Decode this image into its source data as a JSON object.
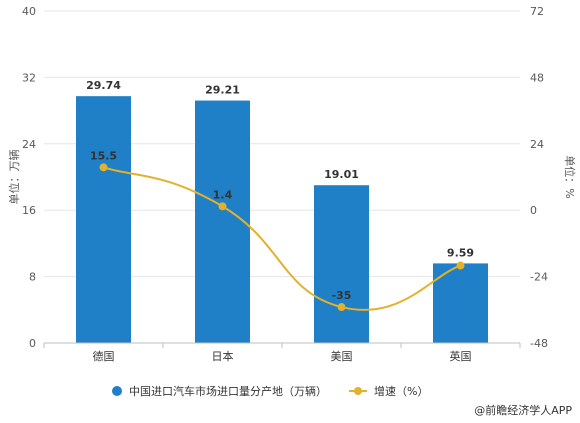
{
  "chart_data": {
    "type": "bar",
    "categories": [
      "德国",
      "日本",
      "美国",
      "英国"
    ],
    "series": [
      {
        "name": "中国进口汽车市场进口量分产地（万辆）",
        "type": "bar",
        "axis": "left",
        "values": [
          29.74,
          29.21,
          19.01,
          9.59
        ],
        "color": "#1f7fc7"
      },
      {
        "name": "增速（%）",
        "type": "line",
        "axis": "right",
        "values": [
          15.5,
          1.4,
          -35,
          -20
        ],
        "labels": [
          "15.5",
          "1.4",
          "-35",
          ""
        ],
        "color": "#e3b12a"
      }
    ],
    "ylabel": "单位：万辆",
    "y2label": "单位：%",
    "ylim": [
      0,
      40
    ],
    "y2lim": [
      -48,
      72
    ],
    "yticks": [
      0,
      8,
      16,
      24,
      32,
      40
    ],
    "y2ticks": [
      -48,
      -24,
      0,
      24,
      48,
      72
    ],
    "grid": true,
    "legend": "bottom"
  },
  "legend": {
    "bar_label": "中国进口汽车市场进口量分产地（万辆）",
    "line_label": "增速（%）"
  },
  "source": "@前瞻经济学人APP"
}
